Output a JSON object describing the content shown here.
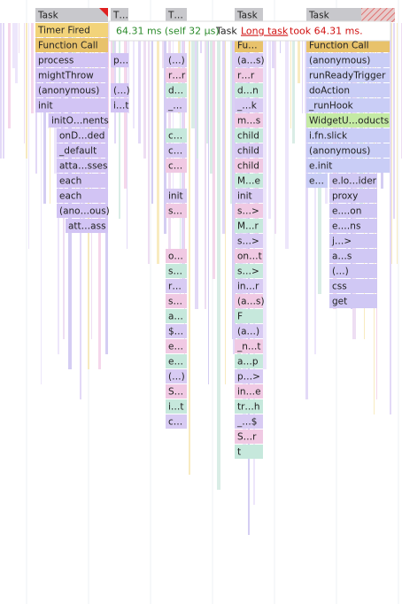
{
  "tooltip": {
    "duration": "64.31 ms (self 32 μs)",
    "name": "Task",
    "warning_link": "Long task",
    "warning_text": "took 64.31 ms."
  },
  "columns": [
    {
      "rows": [
        "Task",
        "Timer Fired",
        "Function Call",
        "process",
        "mightThrow",
        "(anonymous)",
        "init",
        "initO…nents",
        "onD…ded",
        "_default",
        "atta…sses",
        "each",
        "each",
        "(ano…ous)",
        "att…ass"
      ]
    },
    {
      "rows": [
        "T…",
        null,
        null,
        "p…",
        null,
        "(…)",
        "i…t"
      ]
    },
    {
      "rows": [
        "T…",
        null,
        null,
        "(…)",
        "r…r",
        "d…",
        "_…",
        null,
        "c…",
        "c…",
        "c…",
        null,
        "init",
        "s…",
        null,
        null,
        "o…",
        "s…",
        "r…",
        "s…",
        "a…",
        "$…",
        "e…",
        "e…",
        "(…)",
        "S…",
        "i…t",
        "c…"
      ]
    },
    {
      "rows": [
        "Task",
        null,
        "Fu…",
        "(a…s)",
        "r…r",
        "d…n",
        "_…k",
        "m…s",
        "child",
        "child",
        "child",
        "M…e",
        "init",
        "s…>",
        "M…r",
        "s…>",
        "on…t",
        "s…>",
        "in…r",
        "(a…s)",
        "F",
        "(a…)",
        "_n…t",
        "a…p",
        "p…>",
        "in…e",
        "tr…h",
        "_…$",
        "S…r",
        "t"
      ]
    },
    {
      "rows": [
        "Task",
        null,
        "Function Call",
        "(anonymous)",
        "runReadyTrigger",
        "doAction",
        "_runHook",
        "WidgetU…oducts",
        "i.fn.slick",
        "(anonymous)",
        "e.init",
        "e…"
      ]
    },
    {
      "rows": [
        null,
        null,
        null,
        null,
        null,
        null,
        null,
        null,
        null,
        null,
        null,
        "e.lo…ider",
        "proxy",
        "e.…on",
        "e.…ns",
        "j…>",
        "a…s",
        "(…)",
        "css",
        "get"
      ]
    }
  ]
}
